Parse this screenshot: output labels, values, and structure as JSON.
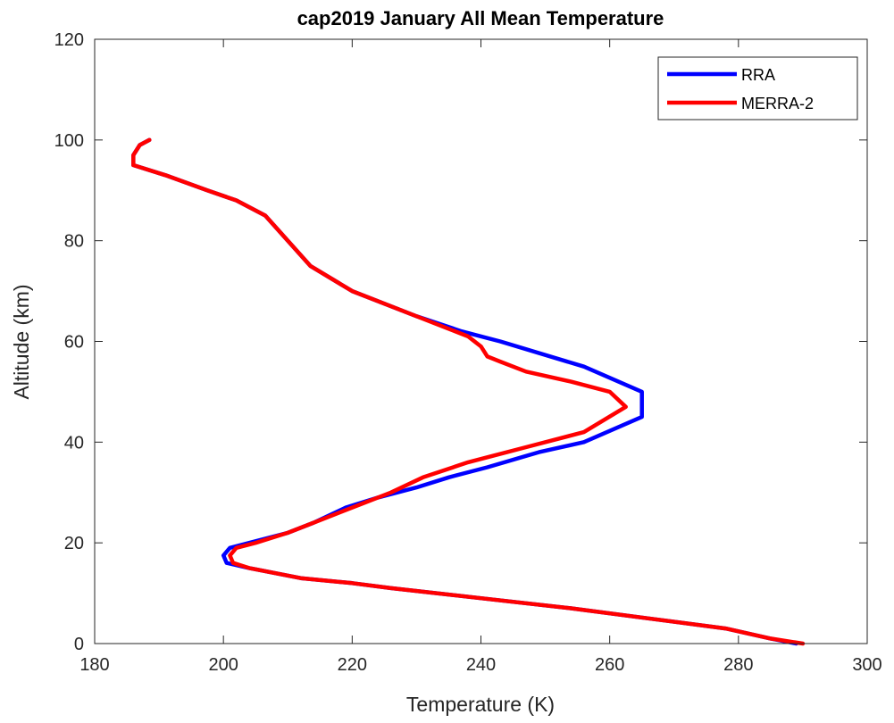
{
  "chart_data": {
    "type": "line",
    "title": "cap2019 January All Mean Temperature",
    "xlabel": "Temperature (K)",
    "ylabel": "Altitude (km)",
    "xlim": [
      180,
      300
    ],
    "ylim": [
      0,
      120
    ],
    "xticks": [
      180,
      200,
      220,
      240,
      260,
      280,
      300
    ],
    "yticks": [
      0,
      20,
      40,
      60,
      80,
      100,
      120
    ],
    "grid": false,
    "legend_position": "top-right",
    "series": [
      {
        "name": "RRA",
        "color": "#0000ff",
        "x": [
          289.0,
          285.0,
          278.0,
          266.0,
          254.0,
          240.0,
          226.0,
          220.0,
          212.0,
          204.0,
          200.5,
          200.0,
          201.0,
          204.0,
          210.0,
          214.0,
          219.0,
          224.0,
          230.0,
          235.0,
          241.0,
          249.0,
          256.0,
          265.0,
          265.0,
          256.0,
          243.0,
          237.0,
          230.0,
          220.0,
          213.5,
          210.0,
          206.5,
          202.0,
          197.5,
          191.0,
          186.0,
          186.0,
          187.0,
          188.5
        ],
        "y": [
          0,
          1,
          3,
          5,
          7,
          9,
          11,
          12,
          13,
          15,
          16,
          17.5,
          19,
          20,
          22,
          24,
          27,
          29,
          31,
          33,
          35,
          38,
          40,
          45,
          50,
          55,
          60,
          62,
          65,
          70,
          75,
          80,
          85,
          88,
          90,
          93,
          95,
          97,
          99,
          100
        ]
      },
      {
        "name": "MERRA-2",
        "color": "#ff0000",
        "x": [
          290.0,
          285.0,
          278.0,
          266.0,
          254.0,
          240.0,
          226.0,
          220.0,
          212.0,
          204.0,
          201.5,
          201.0,
          202.0,
          205.0,
          210.0,
          214.0,
          218.0,
          222.0,
          226.0,
          231.0,
          238.0,
          247.0,
          256.0,
          262.5,
          260.0,
          254.0,
          247.0,
          243.0,
          241.0,
          240.0,
          238.0,
          230.0,
          220.0,
          213.5,
          210.0,
          206.5,
          202.0,
          197.5,
          191.0,
          186.0,
          186.0,
          187.0,
          188.5
        ],
        "y": [
          0,
          1,
          3,
          5,
          7,
          9,
          11,
          12,
          13,
          15,
          16,
          17.5,
          19,
          20,
          22,
          24,
          26,
          28,
          30,
          33,
          36,
          39,
          42,
          47,
          50,
          52,
          54,
          56,
          57,
          59,
          61,
          65,
          70,
          75,
          80,
          85,
          88,
          90,
          93,
          95,
          97,
          99,
          100
        ]
      }
    ]
  }
}
